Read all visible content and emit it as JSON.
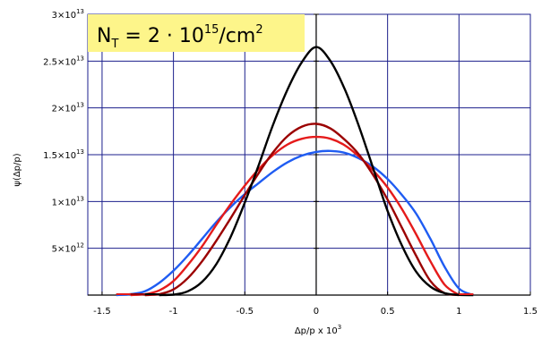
{
  "chart_data": {
    "type": "line",
    "title": "",
    "xlabel": "Δp/p x 10",
    "xlabel_exp": "3",
    "ylabel": "ψ(Δp/p)",
    "xlim": [
      -1.6,
      1.5
    ],
    "ylim": [
      0,
      30000000000000.0
    ],
    "grid": true,
    "x_ticks": [
      {
        "value": -1.5,
        "label": "-1.5"
      },
      {
        "value": -1.0,
        "label": "-1"
      },
      {
        "value": -0.5,
        "label": "-0.5"
      },
      {
        "value": 0.0,
        "label": "0"
      },
      {
        "value": 0.5,
        "label": "0.5"
      },
      {
        "value": 1.0,
        "label": "1"
      },
      {
        "value": 1.5,
        "label": "1.5"
      }
    ],
    "y_ticks": [
      {
        "value": 5000000000000.0,
        "mant": "5",
        "exp": "12"
      },
      {
        "value": 10000000000000.0,
        "mant": "1",
        "exp": "13"
      },
      {
        "value": 15000000000000.0,
        "mant": "1.5",
        "exp": "13"
      },
      {
        "value": 20000000000000.0,
        "mant": "2",
        "exp": "13"
      },
      {
        "value": 25000000000000.0,
        "mant": "2.5",
        "exp": "13"
      },
      {
        "value": 30000000000000.0,
        "mant": "3",
        "exp": "13"
      }
    ],
    "tick_times": "×10",
    "annotation": {
      "text_a": "N",
      "text_a_sub": "T",
      "text_b": " = 2 · 10",
      "text_b_sup": "15",
      "text_c": "/cm",
      "text_c_sup": "2"
    },
    "series": [
      {
        "color": "#000000",
        "x": [
          -1.1,
          -1.0,
          -0.9,
          -0.8,
          -0.7,
          -0.6,
          -0.5,
          -0.4,
          -0.3,
          -0.2,
          -0.1,
          0.0,
          0.1,
          0.2,
          0.3,
          0.4,
          0.5,
          0.6,
          0.7,
          0.8,
          0.9,
          1.0,
          1.1
        ],
        "y": [
          0,
          50000000000.0,
          400000000000.0,
          1400000000000.0,
          3300000000000.0,
          6200000000000.0,
          9900000000000.0,
          14000000000000.0,
          18300000000000.0,
          22000000000000.0,
          24900000000000.0,
          26500000000000.0,
          25000000000000.0,
          22000000000000.0,
          18000000000000.0,
          13500000000000.0,
          9000000000000.0,
          5300000000000.0,
          2500000000000.0,
          900000000000.0,
          200000000000.0,
          20000000000.0,
          0
        ]
      },
      {
        "color": "#9b0000",
        "x": [
          -1.2,
          -1.1,
          -1.0,
          -0.9,
          -0.8,
          -0.7,
          -0.6,
          -0.5,
          -0.4,
          -0.3,
          -0.2,
          -0.1,
          0.0,
          0.1,
          0.2,
          0.3,
          0.4,
          0.5,
          0.6,
          0.7,
          0.8,
          0.9,
          1.0
        ],
        "y": [
          0,
          100000000000.0,
          600000000000.0,
          1800000000000.0,
          3600000000000.0,
          5800000000000.0,
          8200000000000.0,
          10700000000000.0,
          13100000000000.0,
          15300000000000.0,
          17000000000000.0,
          18000000000000.0,
          18300000000000.0,
          17800000000000.0,
          16600000000000.0,
          15000000000000.0,
          12800000000000.0,
          10200000000000.0,
          7200000000000.0,
          4200000000000.0,
          1500000000000.0,
          200000000000.0,
          0
        ]
      },
      {
        "color": "#e51b1b",
        "x": [
          -1.3,
          -1.2,
          -1.1,
          -1.0,
          -0.9,
          -0.8,
          -0.7,
          -0.6,
          -0.5,
          -0.4,
          -0.3,
          -0.2,
          -0.1,
          0.0,
          0.1,
          0.2,
          0.3,
          0.4,
          0.5,
          0.6,
          0.7,
          0.8,
          0.9,
          1.0
        ],
        "y": [
          0,
          100000000000.0,
          500000000000.0,
          1500000000000.0,
          3200000000000.0,
          5200000000000.0,
          7500000000000.0,
          9700000000000.0,
          11700000000000.0,
          13500000000000.0,
          15000000000000.0,
          16100000000000.0,
          16700000000000.0,
          16900000000000.0,
          16700000000000.0,
          16000000000000.0,
          14800000000000.0,
          13300000000000.0,
          11500000000000.0,
          9200000000000.0,
          6500000000000.0,
          3600000000000.0,
          1100000000000.0,
          0
        ]
      },
      {
        "color": "#1f5cf2",
        "x": [
          -1.4,
          -1.3,
          -1.2,
          -1.1,
          -1.0,
          -0.9,
          -0.8,
          -0.7,
          -0.6,
          -0.5,
          -0.4,
          -0.3,
          -0.2,
          -0.1,
          0.0,
          0.1,
          0.2,
          0.3,
          0.4,
          0.5,
          0.6,
          0.7,
          0.8,
          0.9,
          1.0,
          1.1
        ],
        "y": [
          0,
          100000000000.0,
          400000000000.0,
          1300000000000.0,
          2600000000000.0,
          4200000000000.0,
          6000000000000.0,
          7800000000000.0,
          9400000000000.0,
          10800000000000.0,
          12000000000000.0,
          13200000000000.0,
          14200000000000.0,
          14900000000000.0,
          15300000000000.0,
          15400000000000.0,
          15200000000000.0,
          14600000000000.0,
          13700000000000.0,
          12400000000000.0,
          10700000000000.0,
          8700000000000.0,
          6000000000000.0,
          3000000000000.0,
          700000000000.0,
          0
        ]
      }
    ],
    "colors": {
      "grid": "#1b1f8c",
      "axis": "#000000",
      "annotation_bg": "#fdf58a"
    }
  }
}
